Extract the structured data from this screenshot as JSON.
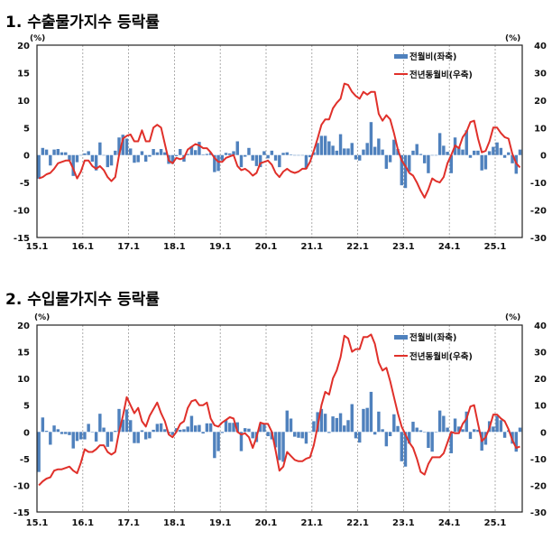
{
  "chart_data": [
    {
      "type": "bar+line",
      "title": "1. 수출물가지수 등락률",
      "left_unit": "(%)",
      "right_unit": "(%)",
      "ylim_left": [
        -15,
        20
      ],
      "ylim_right": [
        -30,
        40
      ],
      "yticks_left": [
        "20",
        "15",
        "10",
        "5",
        "0",
        "-5",
        "-10",
        "-15"
      ],
      "yticks_right": [
        "40",
        "30",
        "20",
        "10",
        "0",
        "-10",
        "-20",
        "-30"
      ],
      "xticks": [
        "15.1",
        "16.1",
        "17.1",
        "18.1",
        "19.1",
        "20.1",
        "21.1",
        "22.1",
        "23.1",
        "24.1",
        "25.1"
      ],
      "x_start": "15.1",
      "grid": "vertical dashed at year starts",
      "legend": "top-right",
      "colors": {
        "bar": "#4f81bd",
        "line": "#e0302a"
      },
      "series": [
        {
          "name": "전월비(좌축)",
          "axis": "left",
          "kind": "bar",
          "values": [
            -4.3,
            1.3,
            1.0,
            -1.9,
            1.0,
            1.1,
            0.5,
            0.5,
            -1.0,
            -3.8,
            -1.3,
            0.0,
            0.3,
            0.7,
            -1.2,
            -2.8,
            2.3,
            0.0,
            -2.2,
            -1.9,
            0.8,
            3.2,
            3.7,
            3.0,
            1.2,
            -1.4,
            -1.3,
            0.7,
            -1.2,
            -0.3,
            1.1,
            0.5,
            1.1,
            0.5,
            -1.6,
            -1.6,
            -0.2,
            1.1,
            -1.2,
            0.2,
            1.6,
            0.9,
            2.4,
            0.1,
            0.2,
            0.4,
            -3.1,
            -2.9,
            -1.0,
            0.4,
            0.3,
            0.7,
            2.5,
            -2.2,
            -0.3,
            1.3,
            -1.0,
            -2.0,
            -2.2,
            0.7,
            -0.6,
            0.8,
            -1.0,
            -2.2,
            0.4,
            0.5,
            0.1,
            0.0,
            0.0,
            0.0,
            -2.5,
            -0.4,
            0.5,
            2.2,
            3.5,
            3.5,
            2.5,
            1.7,
            0.8,
            3.8,
            1.2,
            1.2,
            2.2,
            -0.8,
            -1.0,
            1.0,
            2.2,
            6.0,
            1.5,
            3.0,
            1.0,
            -2.5,
            -1.3,
            2.8,
            1.1,
            -5.5,
            -6.0,
            -3.0,
            0.8,
            2.0,
            0.2,
            -1.5,
            -3.3,
            0.0,
            0.0,
            4.0,
            1.7,
            0.6,
            -3.3,
            3.2,
            1.5,
            1.0,
            4.5,
            -0.5,
            0.8,
            0.8,
            -2.8,
            -2.6,
            0.7,
            1.5,
            2.3,
            1.3,
            -0.5,
            0.5,
            -1.5,
            -3.4,
            1.0
          ]
        },
        {
          "name": "전년동월비(우축)",
          "axis": "right",
          "kind": "line",
          "values": [
            -8.5,
            -8,
            -7,
            -6.5,
            -5,
            -3,
            -2.5,
            -2,
            -2,
            -5,
            -8.5,
            -6,
            -2,
            -2,
            -4,
            -5,
            -4,
            -5.5,
            -8,
            -9.5,
            -8,
            0,
            6,
            7,
            7.5,
            5,
            5,
            9,
            5,
            5,
            10,
            11,
            10,
            4,
            -2,
            -3,
            -1,
            -1.5,
            -1,
            2,
            3,
            4,
            3.5,
            2.5,
            2.5,
            1,
            -1,
            -2.5,
            -2.5,
            -1,
            -0.5,
            0,
            -4,
            -5.5,
            -5,
            -6,
            -7.5,
            -6.5,
            -3,
            -2.5,
            -2,
            -3.5,
            -6.5,
            -8,
            -6,
            -5,
            -6,
            -6.5,
            -6,
            -5,
            -5,
            -2.5,
            1.5,
            6,
            11,
            13,
            13,
            17,
            19,
            20.5,
            26,
            25.5,
            23,
            21.5,
            20.5,
            23,
            22,
            23,
            23,
            15,
            12.5,
            14.5,
            13,
            8,
            2,
            -2,
            -4,
            -6.5,
            -7.5,
            -10,
            -13,
            -15.5,
            -12.5,
            -8.5,
            -9.5,
            -10,
            -8,
            -3,
            0,
            3.5,
            2.5,
            6.5,
            8.5,
            12,
            12.5,
            6,
            1,
            1.5,
            5,
            10,
            10,
            8,
            6.5,
            6,
            0.5,
            -3,
            -4.5
          ]
        }
      ]
    },
    {
      "type": "bar+line",
      "title": "2. 수입물가지수 등락률",
      "left_unit": "(%)",
      "right_unit": "(%)",
      "ylim_left": [
        -15,
        20
      ],
      "ylim_right": [
        -30,
        40
      ],
      "yticks_left": [
        "20",
        "15",
        "10",
        "5",
        "0",
        "-5",
        "-10",
        "-15"
      ],
      "yticks_right": [
        "40",
        "30",
        "20",
        "10",
        "0",
        "-10",
        "-20",
        "-30"
      ],
      "xticks": [
        "15.1",
        "16.1",
        "17.1",
        "18.1",
        "19.1",
        "20.1",
        "21.1",
        "22.1",
        "23.1",
        "24.1",
        "25.1"
      ],
      "x_start": "15.1",
      "grid": "vertical dashed at year starts",
      "legend": "top-right",
      "colors": {
        "bar": "#4f81bd",
        "line": "#e0302a"
      },
      "series": [
        {
          "name": "전월비(좌축)",
          "axis": "left",
          "kind": "bar",
          "values": [
            -7.5,
            2.7,
            0.2,
            -2.4,
            1.2,
            0.5,
            -0.4,
            -0.4,
            -0.6,
            -3.1,
            -1.7,
            -1.4,
            -1.4,
            1.5,
            0.0,
            -1.8,
            3.4,
            0.8,
            -2.8,
            -1.8,
            0.2,
            4.3,
            2.3,
            4.2,
            2.2,
            -2.1,
            -2.1,
            0.3,
            -1.4,
            -1.2,
            0.4,
            1.5,
            1.6,
            0.5,
            -0.3,
            -0.6,
            0.7,
            0.4,
            0.5,
            1.0,
            3.0,
            1.2,
            1.3,
            -0.3,
            1.6,
            1.6,
            -4.9,
            -3.6,
            -0.2,
            2.2,
            1.7,
            1.7,
            1.8,
            -3.6,
            0.7,
            0.6,
            -1.2,
            -1.9,
            1.5,
            1.4,
            -0.8,
            -1.4,
            -2.9,
            -5.3,
            -5.6,
            4.0,
            2.5,
            -0.9,
            -1.1,
            -1.2,
            -2.2,
            0.0,
            2.0,
            3.7,
            4.3,
            3.4,
            -0.2,
            2.9,
            2.6,
            3.5,
            1.2,
            2.2,
            5.2,
            -1.2,
            -2.0,
            4.3,
            4.5,
            7.5,
            -0.5,
            3.8,
            0.5,
            -2.7,
            -0.8,
            3.3,
            1.1,
            -5.5,
            -6.5,
            -2.2,
            1.9,
            0.8,
            0.3,
            0.0,
            -3.0,
            -3.7,
            0.0,
            4.0,
            3.0,
            0.8,
            -4.0,
            2.5,
            1.0,
            0.5,
            3.8,
            -1.3,
            0.5,
            0.4,
            -3.5,
            -2.4,
            2.0,
            1.0,
            3.0,
            2.2,
            -1.1,
            0.3,
            -2.2,
            -3.7,
            0.8
          ]
        },
        {
          "name": "전년동월비(우축)",
          "axis": "right",
          "kind": "line",
          "values": [
            -20,
            -18.5,
            -17.5,
            -17,
            -14.5,
            -14,
            -14,
            -13.5,
            -13,
            -14.5,
            -15.5,
            -11.5,
            -6.5,
            -7.5,
            -7.5,
            -6.5,
            -5,
            -5,
            -7.5,
            -8.5,
            -7.5,
            0,
            6,
            13,
            10,
            7,
            9,
            4,
            2,
            6,
            8.5,
            11,
            7,
            4,
            -1,
            -2,
            0,
            3,
            4,
            9,
            11.5,
            12,
            10,
            10,
            11,
            5,
            2.5,
            2,
            3.5,
            4.5,
            5.5,
            5,
            0,
            -1,
            -0.5,
            -2,
            -6,
            -2,
            3.5,
            3,
            3,
            0,
            -7,
            -14.5,
            -13,
            -7.5,
            -9,
            -10.5,
            -11,
            -11,
            -10,
            -9.5,
            -5,
            2,
            10,
            15,
            14,
            20,
            23,
            28,
            36,
            35,
            30,
            31,
            31,
            35.5,
            35.5,
            36.5,
            33,
            26,
            23,
            24,
            19,
            13,
            7,
            2,
            -1,
            -4,
            -6,
            -10,
            -15,
            -16,
            -12,
            -9.5,
            -9.5,
            -9.5,
            -8,
            -4,
            0,
            -0.5,
            -0.5,
            3,
            5,
            9.5,
            10,
            3,
            -3.5,
            -2,
            1.5,
            6.5,
            6.5,
            5,
            4,
            1,
            -3,
            -6,
            -5.5
          ]
        }
      ]
    }
  ]
}
